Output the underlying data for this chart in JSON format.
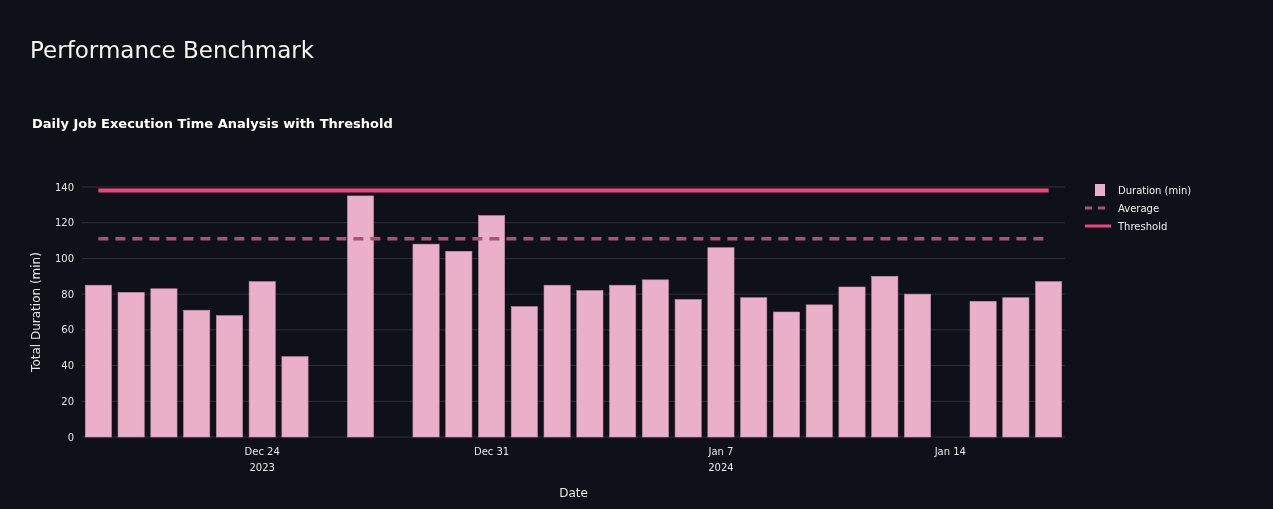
{
  "chart_data": {
    "type": "bar",
    "title": "Performance Benchmark",
    "subtitle": "Daily Job Execution Time Analysis with Threshold",
    "xlabel": "Date",
    "ylabel": "Total Duration (min)",
    "x": [
      "2023-12-19",
      "2023-12-20",
      "2023-12-21",
      "2023-12-22",
      "2023-12-23",
      "2023-12-24",
      "2023-12-25",
      "2023-12-27",
      "2023-12-29",
      "2023-12-30",
      "2023-12-31",
      "2024-01-01",
      "2024-01-02",
      "2024-01-03",
      "2024-01-04",
      "2024-01-05",
      "2024-01-06",
      "2024-01-07",
      "2024-01-08",
      "2024-01-09",
      "2024-01-10",
      "2024-01-11",
      "2024-01-12",
      "2024-01-13",
      "2024-01-15",
      "2024-01-16",
      "2024-01-17"
    ],
    "series": [
      {
        "name": "Duration (min)",
        "color": "#ebb0c9",
        "values": [
          85,
          81,
          83,
          71,
          68,
          87,
          45,
          135,
          108,
          104,
          124,
          73,
          85,
          82,
          85,
          88,
          77,
          106,
          78,
          70,
          74,
          84,
          90,
          80,
          76,
          78,
          87
        ]
      }
    ],
    "xlim": [
      "2023-12-18T12:00",
      "2024-01-17T12:00"
    ],
    "xticks": [
      {
        "value": "2023-12-24",
        "label": "Dec 24\n2023"
      },
      {
        "value": "2023-12-31",
        "label": "Dec 31"
      },
      {
        "value": "2024-01-07",
        "label": "Jan 7\n2024"
      },
      {
        "value": "2024-01-14",
        "label": "Jan 14"
      }
    ],
    "ylim": [
      0,
      140
    ],
    "yticks": [
      0,
      20,
      40,
      60,
      80,
      100,
      120,
      140
    ],
    "ref_lines": [
      {
        "axis": "y",
        "value": 111,
        "label": "Average",
        "color": "#a35673",
        "line_style": "dashed"
      },
      {
        "axis": "y",
        "value": 138,
        "label": "Threshold",
        "color": "#f0457e",
        "line_style": "solid"
      }
    ],
    "grid": "y",
    "legend": "top right"
  }
}
